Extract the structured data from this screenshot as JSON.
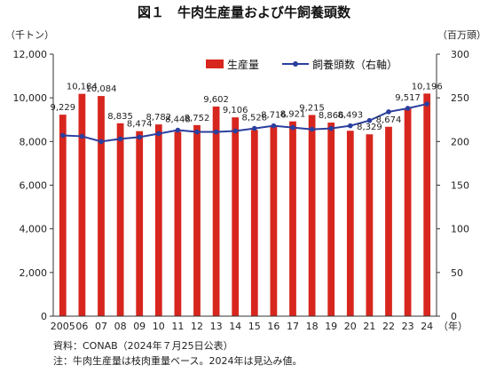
{
  "chart_data": {
    "type": "bar",
    "title": "図１　牛肉生産量および牛飼養頭数",
    "left_unit": "（千トン）",
    "right_unit": "（百万頭）",
    "x_suffix": "（年）",
    "categories": [
      "2005",
      "06",
      "07",
      "08",
      "09",
      "10",
      "11",
      "12",
      "13",
      "14",
      "15",
      "16",
      "17",
      "18",
      "19",
      "20",
      "21",
      "22",
      "23",
      "24"
    ],
    "series": [
      {
        "name": "生産量",
        "type": "bar",
        "axis": "left",
        "color": "#d7261e",
        "values": [
          9229,
          10184,
          10084,
          8835,
          8474,
          8782,
          8448,
          8752,
          9602,
          9106,
          8528,
          8716,
          8921,
          9215,
          8866,
          8493,
          8329,
          8674,
          9517,
          10196
        ],
        "labels": [
          "9,229",
          "10,184",
          "10,084",
          "8,835",
          "8,474",
          "8,782",
          "8,448",
          "8,752",
          "9,602",
          "9,106",
          "8,528",
          "8,716",
          "8,921",
          "9,215",
          "8,866",
          "8,493",
          "8,329",
          "8,674",
          "9,517",
          "10,196"
        ]
      },
      {
        "name": "飼養頭数（右軸）",
        "type": "line",
        "axis": "right",
        "color": "#2b3f9e",
        "values": [
          207,
          206,
          200,
          203,
          205,
          209,
          213,
          211,
          211,
          212,
          215,
          218,
          216,
          214,
          215,
          218,
          224,
          234,
          238,
          243
        ]
      }
    ],
    "y_left": {
      "min": 0,
      "max": 12000,
      "ticks": [
        0,
        2000,
        4000,
        6000,
        8000,
        10000,
        12000
      ],
      "tick_labels": [
        "0",
        "2,000",
        "4,000",
        "6,000",
        "8,000",
        "10,000",
        "12,000"
      ]
    },
    "y_right": {
      "min": 0,
      "max": 300,
      "ticks": [
        0,
        50,
        100,
        150,
        200,
        250,
        300
      ],
      "tick_labels": [
        "0",
        "50",
        "100",
        "150",
        "200",
        "250",
        "300"
      ]
    },
    "grid": false,
    "legend": "top-right"
  },
  "notes": {
    "source": "資料：CONAB（2024年７月25日公表）",
    "note": "注：牛肉生産量は枝肉重量ベース。2024年は見込み値。"
  }
}
